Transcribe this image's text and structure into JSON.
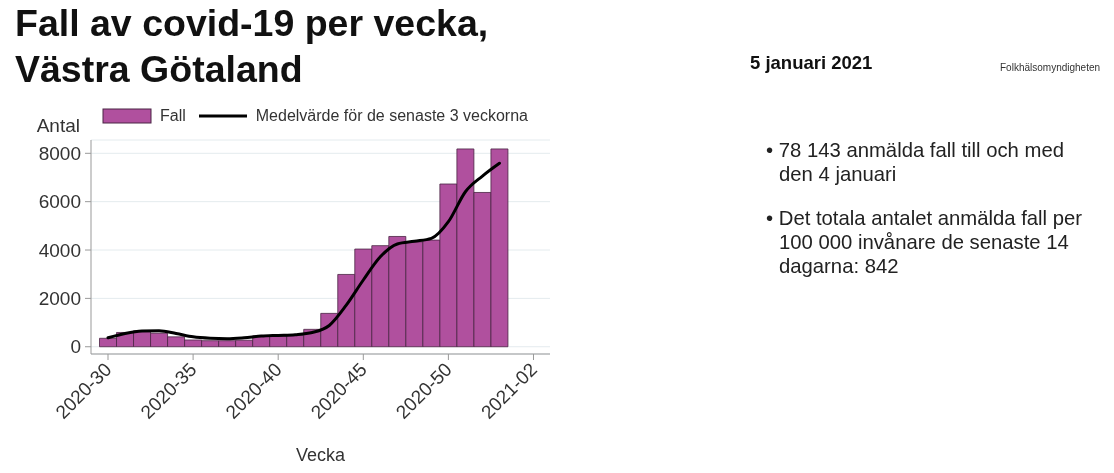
{
  "chart_data": {
    "type": "bar",
    "title": "Fall av covid-19 per vecka, Västra Götaland",
    "xlabel": "Vecka",
    "ylabel": "Antal",
    "annotations": [
      "5 januari 2021",
      "Folkhälsomyndigheten",
      "• 78 143 anmälda fall till och med den 4 januari",
      "• Det totala antalet anmälda fall per 100 000 invånare de senaste 14 dagarna: 842"
    ],
    "categories": [
      "2020-30",
      null,
      null,
      null,
      null,
      "2020-35",
      null,
      null,
      null,
      null,
      "2020-40",
      null,
      null,
      null,
      null,
      "2020-45",
      null,
      null,
      null,
      null,
      "2020-50",
      null,
      null,
      null,
      null,
      "2021-02"
    ],
    "ylim": [
      -300,
      8550
    ],
    "yticks": [
      0,
      2000,
      4000,
      6000,
      8000
    ],
    "grid": "y",
    "legend": "top",
    "series": [
      {
        "name": "Fall",
        "color": "#b0509e",
        "values": [
          350,
          590,
          660,
          560,
          410,
          280,
          250,
          250,
          270,
          450,
          440,
          470,
          720,
          1380,
          2990,
          4040,
          4180,
          4560,
          4340,
          4410,
          6730,
          8180,
          6380,
          8180,
          null,
          null
        ]
      },
      {
        "name": "Medelvärde för de senaste 3 veckorna",
        "type": "line",
        "color": "#000000",
        "values": [
          370,
          550,
          650,
          660,
          550,
          410,
          350,
          330,
          370,
          440,
          470,
          500,
          590,
          880,
          1720,
          2760,
          3720,
          4250,
          4360,
          4480,
          5170,
          6410,
          7060,
          7590,
          null,
          null
        ]
      }
    ]
  }
}
